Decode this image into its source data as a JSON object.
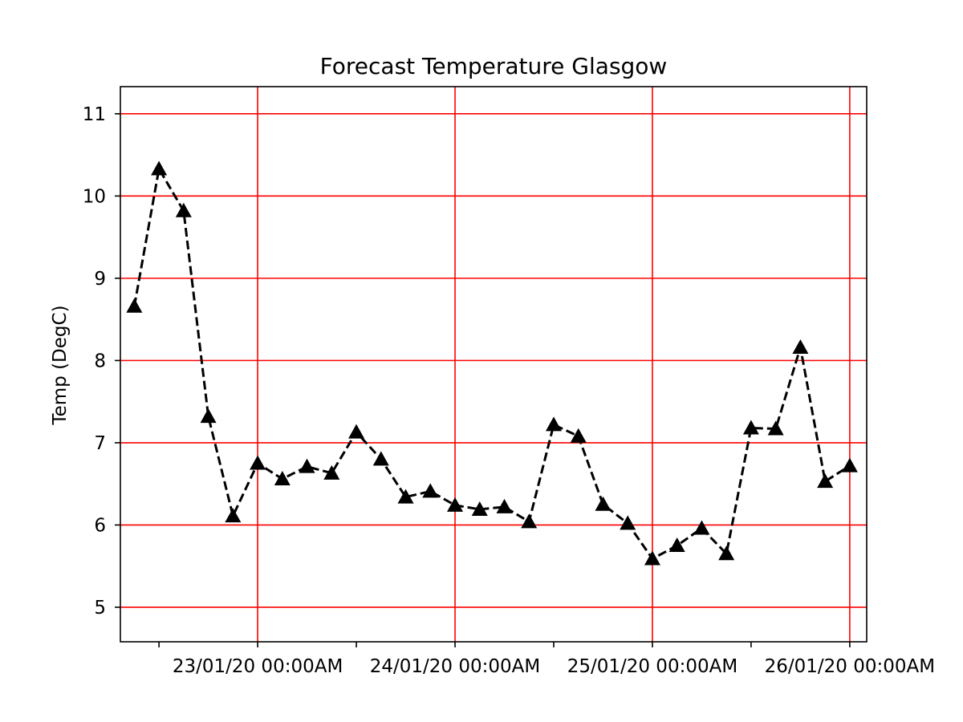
{
  "chart_data": {
    "type": "line",
    "title": "Forecast Temperature Glasgow",
    "xlabel": "",
    "ylabel": "Temp (DegC)",
    "x_tick_labels": [
      "23/01/20 00:00AM",
      "24/01/20 00:00AM",
      "25/01/20 00:00AM",
      "26/01/20 00:00AM"
    ],
    "x_tick_values": [
      1,
      2,
      3,
      4
    ],
    "x_minor_tick_values": [
      0.5,
      1.5,
      2.5,
      3.5
    ],
    "y_ticks": [
      5,
      6,
      7,
      8,
      9,
      10,
      11
    ],
    "xlim": [
      0.3044,
      4.0858
    ],
    "ylim": [
      4.58,
      11.33
    ],
    "grid": true,
    "grid_color": "#ff0000",
    "line_color": "#000000",
    "line_style": "dashed",
    "marker": "triangle-up",
    "series": [
      {
        "x": [
          0.375,
          0.5,
          0.625,
          0.75,
          0.875,
          1.0,
          1.125,
          1.25,
          1.375,
          1.5,
          1.625,
          1.75,
          1.875,
          2.0,
          2.125,
          2.25,
          2.375,
          2.5,
          2.625,
          2.75,
          2.875,
          3.0,
          3.125,
          3.25,
          3.375,
          3.5,
          3.625,
          3.75,
          3.875,
          4.0
        ],
        "values": [
          8.66,
          10.33,
          9.82,
          7.32,
          6.11,
          6.75,
          6.56,
          6.71,
          6.63,
          7.13,
          6.8,
          6.34,
          6.41,
          6.24,
          6.19,
          6.22,
          6.04,
          7.22,
          7.08,
          6.25,
          6.02,
          5.59,
          5.75,
          5.96,
          5.65,
          7.18,
          7.17,
          8.16,
          6.53,
          6.72
        ]
      }
    ]
  }
}
